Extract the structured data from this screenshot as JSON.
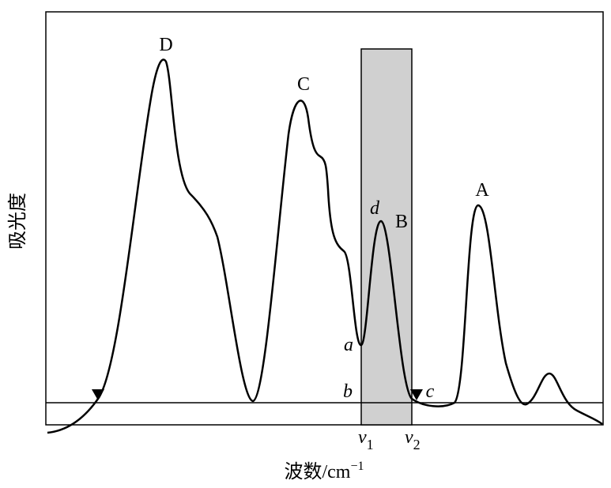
{
  "axes": {
    "y_label": "吸光度",
    "x_label": {
      "text": "波数/cm",
      "superscript": "−1"
    }
  },
  "peaks": {
    "D": "D",
    "C": "C",
    "B": "B",
    "A": "A"
  },
  "points": {
    "a": "a",
    "b": "b",
    "c": "c",
    "d": "d"
  },
  "band_edges": [
    {
      "label": "v",
      "subscript": "1"
    },
    {
      "label": "v",
      "subscript": "2"
    }
  ]
}
